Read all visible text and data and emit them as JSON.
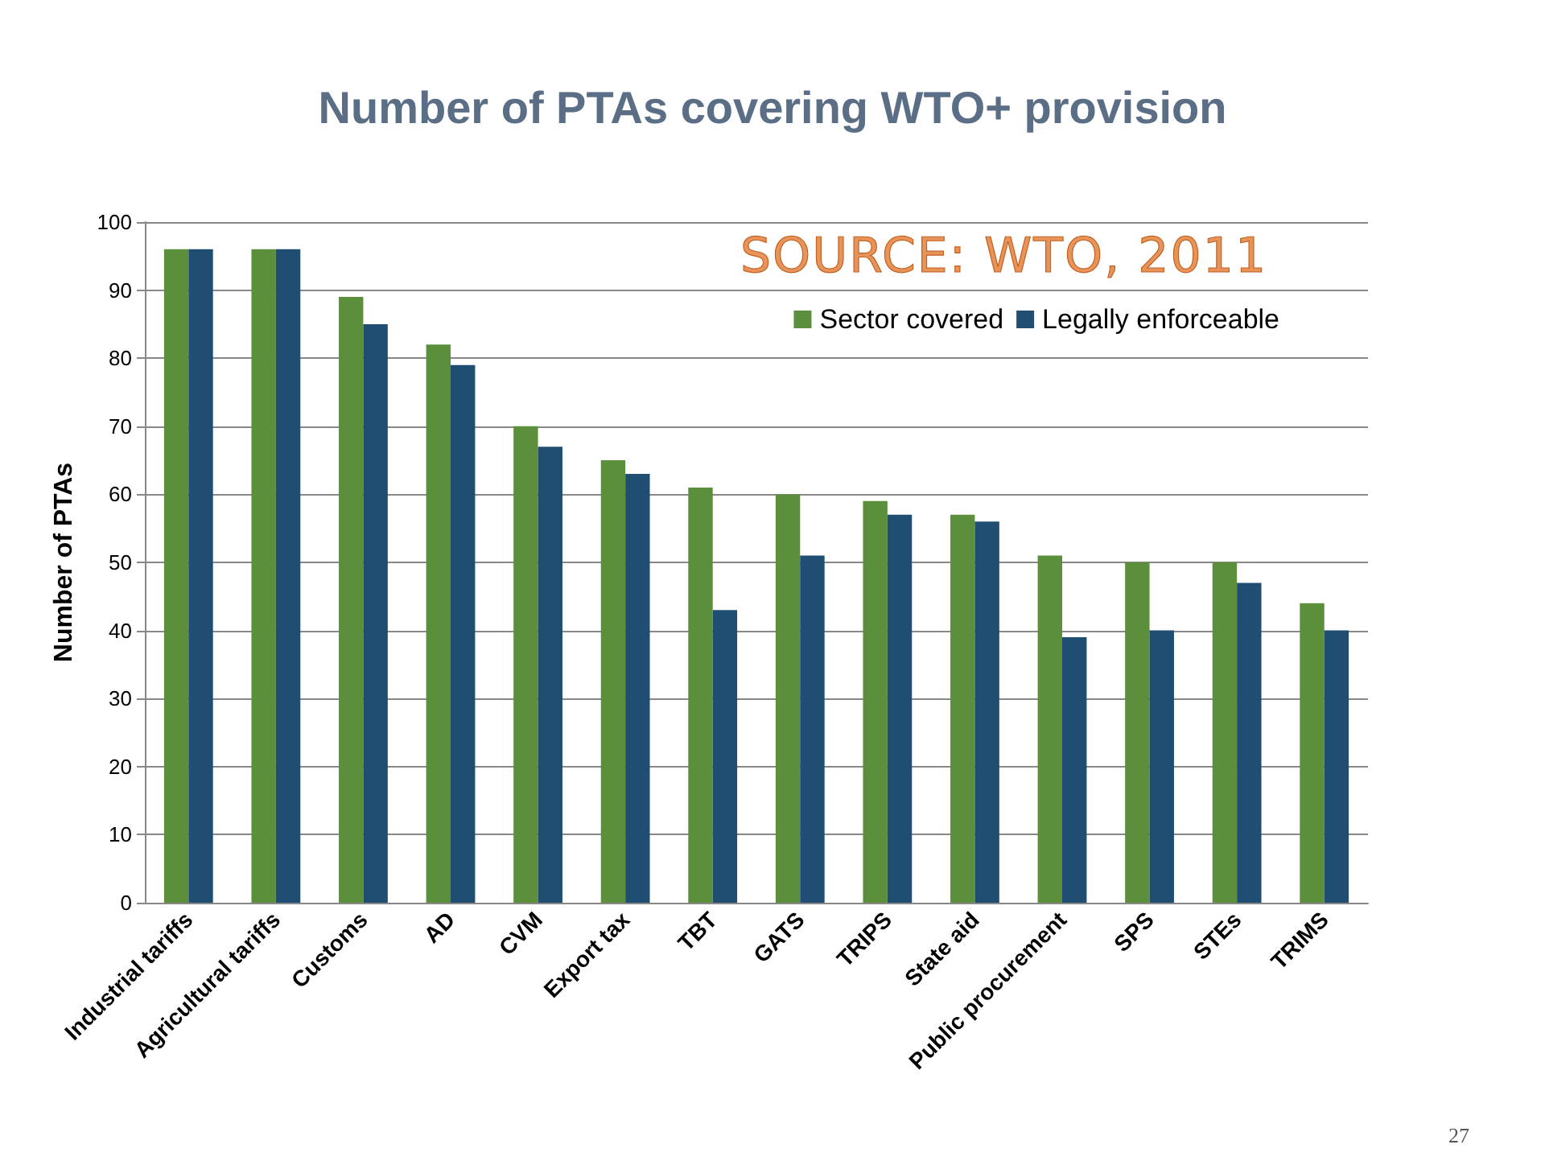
{
  "chart_data": {
    "type": "bar",
    "title": "Number of PTAs covering WTO+ provision",
    "ylabel": "Number of PTAs",
    "categories": [
      "Industrial tariffs",
      "Agricultural tariffs",
      "Customs",
      "AD",
      "CVM",
      "Export tax",
      "TBT",
      "GATS",
      "TRIPS",
      "State aid",
      "Public procurement",
      "SPS",
      "STEs",
      "TRIMS"
    ],
    "series": [
      {
        "name": "Sector covered",
        "color": "#5b8f3b",
        "values": [
          96,
          96,
          89,
          82,
          70,
          65,
          61,
          60,
          59,
          57,
          51,
          50,
          50,
          44
        ]
      },
      {
        "name": "Legally enforceable",
        "color": "#1f4e72",
        "values": [
          96,
          96,
          85,
          79,
          67,
          63,
          43,
          51,
          57,
          56,
          39,
          40,
          47,
          40
        ]
      }
    ],
    "ylim": [
      0,
      100
    ],
    "yticks": [
      0,
      10,
      20,
      30,
      40,
      50,
      60,
      70,
      80,
      90,
      100
    ],
    "grid": "y",
    "legend": "top right",
    "annotations": [
      "SOURCE: WTO, 2011",
      "27"
    ]
  }
}
